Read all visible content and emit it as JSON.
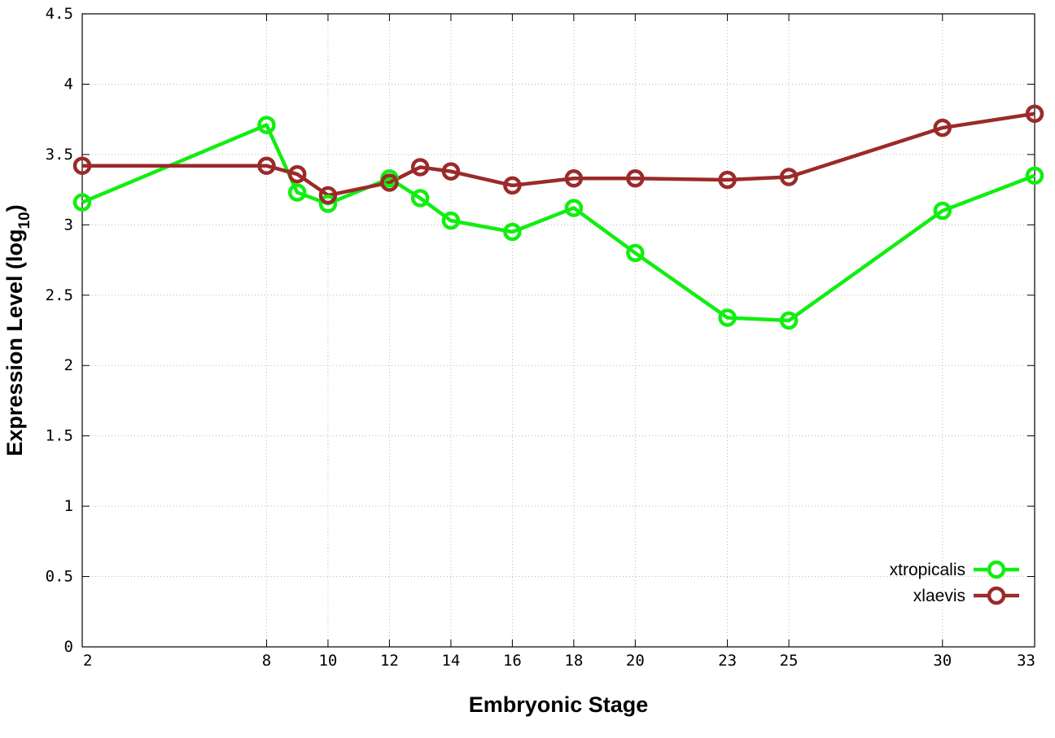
{
  "chart_data": {
    "type": "line",
    "xlabel": "Embryonic Stage",
    "ylabel_main": "Expression Level (log",
    "ylabel_sub": "10",
    "ylabel_close": ")",
    "x": [
      2,
      8,
      9,
      10,
      12,
      13,
      14,
      16,
      18,
      20,
      23,
      25,
      30,
      33
    ],
    "xticks": [
      "2",
      "8",
      "10",
      "12",
      "14",
      "16",
      "18",
      "20",
      "23",
      "25",
      "30",
      "33"
    ],
    "yticks": [
      "0",
      "0.5",
      "1",
      "1.5",
      "2",
      "2.5",
      "3",
      "3.5",
      "4",
      "4.5"
    ],
    "ylim": [
      0,
      4.5
    ],
    "legend_position": "bottom-right",
    "grid": true,
    "series": [
      {
        "name": "xtropicalis",
        "color": "#11ee11",
        "values": [
          3.16,
          3.71,
          3.23,
          3.15,
          3.33,
          3.19,
          3.03,
          2.95,
          3.12,
          2.8,
          2.34,
          2.32,
          3.1,
          3.35
        ]
      },
      {
        "name": "xlaevis",
        "color": "#9b2a2a",
        "values": [
          3.42,
          3.42,
          3.36,
          3.21,
          3.3,
          3.41,
          3.38,
          3.28,
          3.33,
          3.33,
          3.32,
          3.34,
          3.69,
          3.79
        ]
      }
    ]
  }
}
